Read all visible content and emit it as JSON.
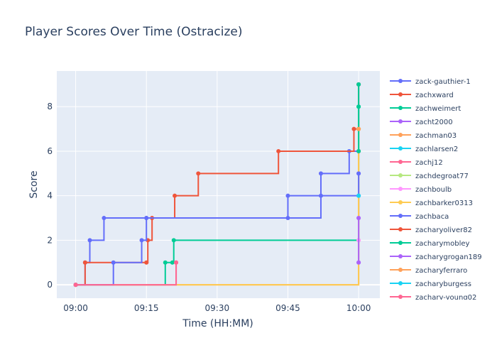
{
  "chart_data": {
    "type": "line",
    "line_shape": "step",
    "title": "Player Scores Over Time (Ostracize)",
    "xlabel": "Time (HH:MM)",
    "ylabel": "Score",
    "xlim_minutes": [
      -4,
      64.5
    ],
    "ylim": [
      -0.6,
      9.6
    ],
    "x_ticks": [
      {
        "value": 0,
        "label": "09:00"
      },
      {
        "value": 15,
        "label": "09:15"
      },
      {
        "value": 30,
        "label": "09:30"
      },
      {
        "value": 45,
        "label": "09:45"
      },
      {
        "value": 60,
        "label": "10:00"
      }
    ],
    "y_ticks": [
      0,
      2,
      4,
      6,
      8
    ],
    "grid": true,
    "legend_position": "right",
    "x_unit": "minutes after 09:00",
    "series": [
      {
        "name": "zack-gauthier-1",
        "color": "#636efa",
        "points": [
          [
            0,
            0
          ],
          [
            2,
            1
          ],
          [
            3,
            2
          ],
          [
            6,
            3
          ],
          [
            15,
            3
          ],
          [
            45,
            4
          ],
          [
            52,
            5
          ],
          [
            58,
            6
          ],
          [
            60,
            6
          ],
          [
            60,
            9
          ]
        ]
      },
      {
        "name": "zachxward",
        "color": "#EF553B",
        "points": [
          [
            0,
            0
          ],
          [
            2,
            1
          ],
          [
            15,
            1
          ],
          [
            15.3,
            2
          ],
          [
            16.2,
            3
          ],
          [
            21,
            4
          ],
          [
            26,
            5
          ],
          [
            43,
            6
          ],
          [
            59,
            7
          ],
          [
            60,
            7
          ],
          [
            60,
            9
          ]
        ]
      },
      {
        "name": "zachweimert",
        "color": "#00cc96",
        "points": [
          [
            0,
            0
          ],
          [
            19,
            1
          ],
          [
            20.5,
            1
          ],
          [
            20.8,
            2
          ],
          [
            60,
            6
          ],
          [
            60,
            8
          ],
          [
            60,
            9
          ]
        ]
      },
      {
        "name": "zacht2000",
        "color": "#ab63fa",
        "points": [
          [
            60,
            1
          ],
          [
            60,
            3
          ],
          [
            60,
            5
          ]
        ]
      },
      {
        "name": "zachman03",
        "color": "#FFA15A",
        "points": [
          [
            0,
            0
          ],
          [
            60,
            7
          ]
        ]
      },
      {
        "name": "zachlarsen2",
        "color": "#19d3f3",
        "points": [
          [
            60,
            4
          ]
        ]
      },
      {
        "name": "zachj12",
        "color": "#FF6692",
        "points": [
          [
            0,
            0
          ],
          [
            21.3,
            1
          ]
        ]
      },
      {
        "name": "zachdegroat77",
        "color": "#B6E880",
        "points": [
          [
            60,
            2
          ]
        ]
      },
      {
        "name": "zachboulb",
        "color": "#FF97FF",
        "points": [
          [
            60,
            2
          ]
        ]
      },
      {
        "name": "zachbarker0313",
        "color": "#FECB52",
        "points": [
          [
            0,
            0
          ],
          [
            60,
            7
          ]
        ]
      },
      {
        "name": "zachbaca",
        "color": "#636efa",
        "points": [
          [
            0,
            0
          ],
          [
            8,
            1
          ],
          [
            14,
            2
          ],
          [
            15,
            3
          ],
          [
            45,
            3
          ],
          [
            52,
            4
          ],
          [
            60,
            4
          ],
          [
            60,
            5
          ]
        ]
      },
      {
        "name": "zacharyoliver82",
        "color": "#EF553B",
        "points": [
          [
            60,
            6
          ]
        ]
      },
      {
        "name": "zacharymobley",
        "color": "#00cc96",
        "points": [
          [
            60,
            6
          ],
          [
            60,
            8
          ]
        ]
      },
      {
        "name": "zacharygrogan189",
        "color": "#ab63fa",
        "points": [
          [
            60,
            1
          ],
          [
            60,
            3
          ]
        ]
      },
      {
        "name": "zacharyferraro",
        "color": "#FFA15A",
        "points": [
          [
            60,
            7
          ]
        ]
      },
      {
        "name": "zacharyburgess",
        "color": "#19d3f3",
        "points": [
          [
            60,
            4
          ]
        ]
      },
      {
        "name": "zachary-young02",
        "color": "#FF6692",
        "points": [
          [
            0,
            0
          ],
          [
            21.3,
            1
          ]
        ]
      }
    ]
  }
}
